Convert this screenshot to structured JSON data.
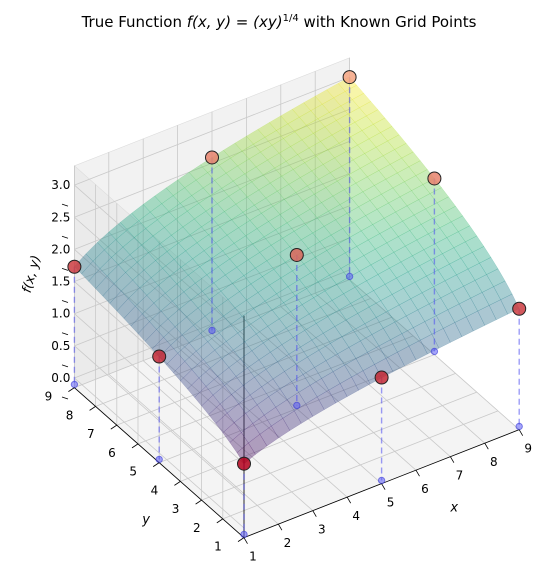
{
  "chart_data": {
    "type": "scatter",
    "title_text": "True Function ",
    "title_math": "f(x, y) = (xy)",
    "title_exp": "1/4",
    "title_tail": " with Known Grid Points",
    "xlabel": "x",
    "ylabel": "y",
    "zlabel": "f(x, y)",
    "x_ticks": [
      "1",
      "2",
      "3",
      "4",
      "5",
      "6",
      "7",
      "8",
      "9"
    ],
    "y_ticks": [
      "1",
      "2",
      "3",
      "4",
      "5",
      "6",
      "7",
      "8",
      "9"
    ],
    "z_ticks": [
      "0.0",
      "0.5",
      "1.0",
      "1.5",
      "2.0",
      "2.5",
      "3.0"
    ],
    "xlim": [
      1,
      9
    ],
    "ylim": [
      1,
      9
    ],
    "zlim": [
      0,
      3
    ],
    "surface": {
      "function": "(x*y)^(1/4)",
      "colormap": "viridis",
      "alpha": 0.4
    },
    "grid": true,
    "points": [
      {
        "x": 1,
        "y": 1,
        "z": 1.0
      },
      {
        "x": 1,
        "y": 5,
        "z": 1.5
      },
      {
        "x": 1,
        "y": 9,
        "z": 1.73
      },
      {
        "x": 5,
        "y": 1,
        "z": 1.5
      },
      {
        "x": 5,
        "y": 5,
        "z": 2.24
      },
      {
        "x": 5,
        "y": 9,
        "z": 2.59
      },
      {
        "x": 9,
        "y": 1,
        "z": 1.73
      },
      {
        "x": 9,
        "y": 5,
        "z": 2.59
      },
      {
        "x": 9,
        "y": 9,
        "z": 3.0
      }
    ],
    "colors": {
      "point_low": "#b3001b",
      "point_high": "#f4a582",
      "stem": "#4a4af0"
    }
  }
}
